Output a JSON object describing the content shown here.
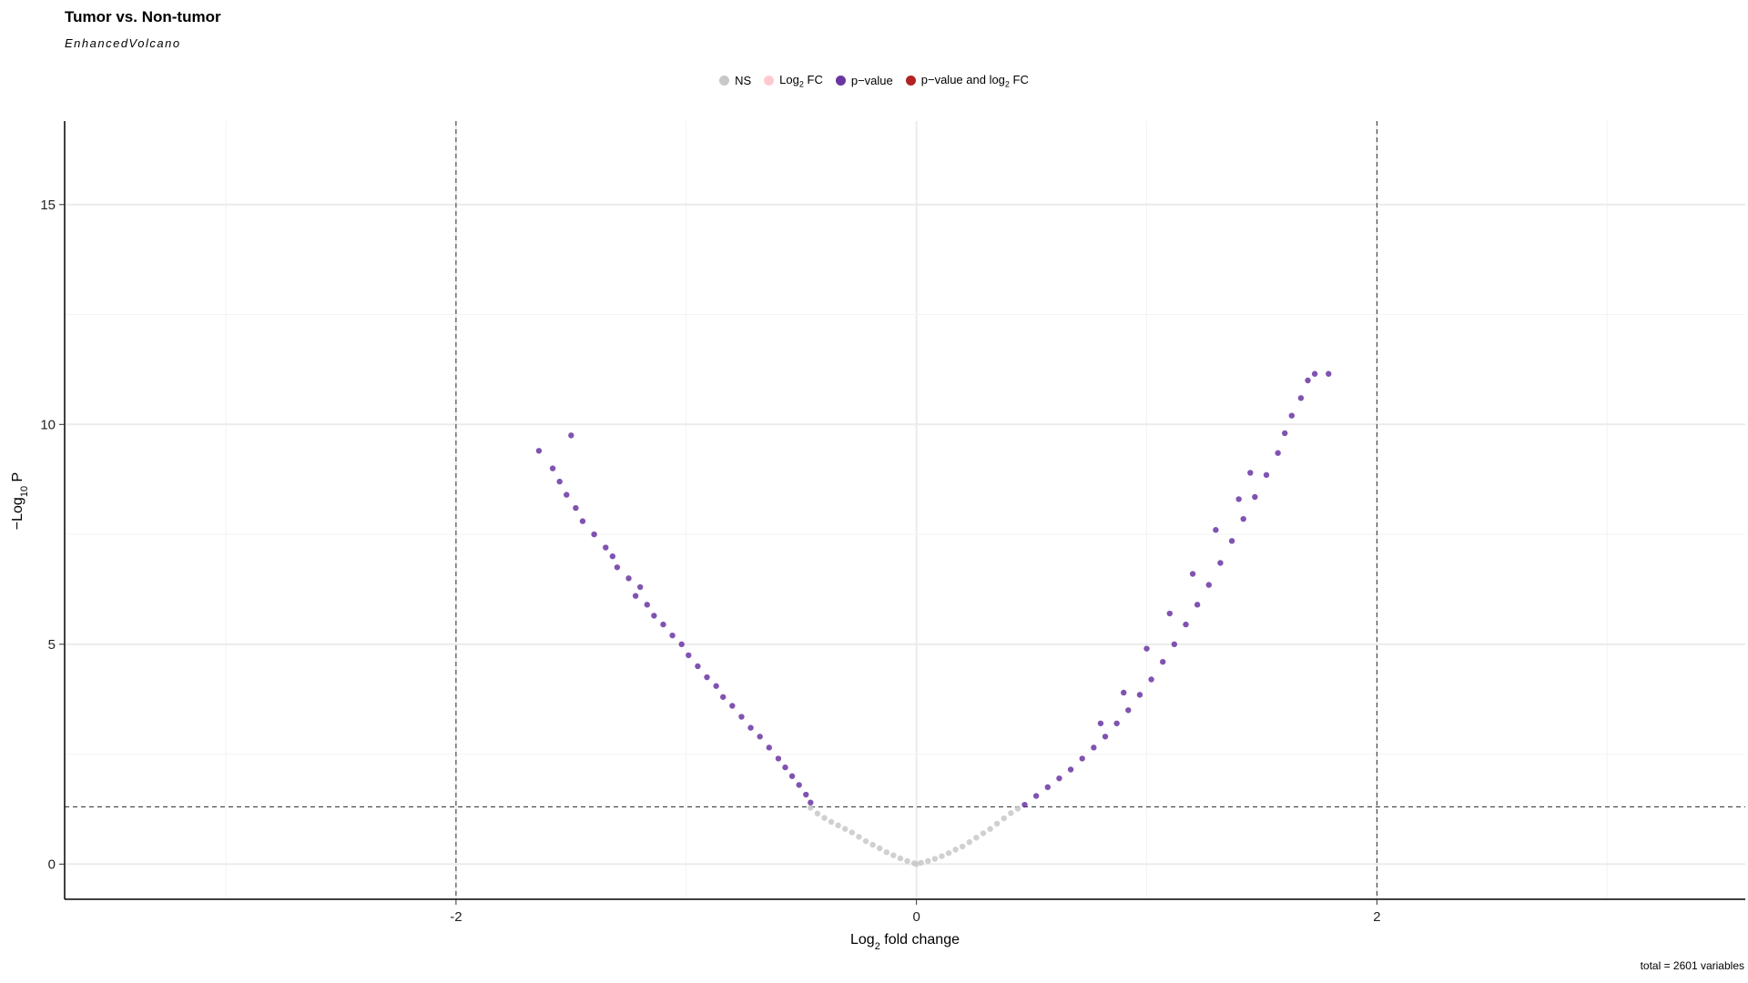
{
  "chart_data": {
    "type": "scatter",
    "title": "Tumor vs. Non-tumor",
    "subtitle": "EnhancedVolcano",
    "xlabel": {
      "base": "Log",
      "sub": "2",
      "rest": " fold change"
    },
    "ylabel": {
      "pre": "−Log",
      "sub": "10",
      "rest": " P"
    },
    "xlim": [
      -3.7,
      3.6
    ],
    "ylim": [
      -0.8,
      16.9
    ],
    "x_ticks": [
      -2,
      0,
      2
    ],
    "y_ticks": [
      0,
      5,
      10,
      15
    ],
    "grid": true,
    "legend_placement": "top",
    "thresholds": {
      "log2fc": [
        -2,
        2
      ],
      "neg_log10_p": 1.3
    },
    "legend": [
      {
        "key": "ns",
        "label": "NS",
        "sub": "",
        "rest": "",
        "color": "#c8c8c8"
      },
      {
        "key": "fc",
        "label": "Log",
        "sub": "2",
        "rest": " FC",
        "color": "#ffc9d0"
      },
      {
        "key": "p",
        "label": "p−value",
        "sub": "",
        "rest": "",
        "color": "#6a35a3"
      },
      {
        "key": "pfc",
        "label": "p−value and log",
        "sub": "2",
        "rest": " FC",
        "color": "#b22222"
      }
    ],
    "series": [
      {
        "name": "NS",
        "color": "#c8c8c8",
        "points": [
          [
            -0.46,
            1.28
          ],
          [
            -0.43,
            1.15
          ],
          [
            -0.4,
            1.05
          ],
          [
            -0.37,
            0.96
          ],
          [
            -0.34,
            0.88
          ],
          [
            -0.31,
            0.8
          ],
          [
            -0.28,
            0.72
          ],
          [
            -0.25,
            0.62
          ],
          [
            -0.22,
            0.52
          ],
          [
            -0.19,
            0.44
          ],
          [
            -0.16,
            0.36
          ],
          [
            -0.13,
            0.27
          ],
          [
            -0.1,
            0.2
          ],
          [
            -0.07,
            0.13
          ],
          [
            -0.04,
            0.07
          ],
          [
            -0.01,
            0.02
          ],
          [
            0.0,
            0.0
          ],
          [
            0.02,
            0.03
          ],
          [
            0.05,
            0.07
          ],
          [
            0.08,
            0.12
          ],
          [
            0.11,
            0.18
          ],
          [
            0.14,
            0.25
          ],
          [
            0.17,
            0.33
          ],
          [
            0.2,
            0.4
          ],
          [
            0.23,
            0.5
          ],
          [
            0.26,
            0.6
          ],
          [
            0.29,
            0.7
          ],
          [
            0.32,
            0.8
          ],
          [
            0.35,
            0.92
          ],
          [
            0.38,
            1.04
          ],
          [
            0.41,
            1.16
          ],
          [
            0.44,
            1.26
          ]
        ]
      },
      {
        "name": "p-value",
        "color": "#6a35a3",
        "points": [
          [
            -1.64,
            9.4
          ],
          [
            -1.5,
            9.75
          ],
          [
            -1.58,
            9.0
          ],
          [
            -1.55,
            8.7
          ],
          [
            -1.52,
            8.4
          ],
          [
            -1.48,
            8.1
          ],
          [
            -1.45,
            7.8
          ],
          [
            -1.4,
            7.5
          ],
          [
            -1.35,
            7.2
          ],
          [
            -1.32,
            7.0
          ],
          [
            -1.3,
            6.75
          ],
          [
            -1.25,
            6.5
          ],
          [
            -1.2,
            6.3
          ],
          [
            -1.22,
            6.1
          ],
          [
            -1.17,
            5.9
          ],
          [
            -1.14,
            5.65
          ],
          [
            -1.1,
            5.45
          ],
          [
            -1.06,
            5.2
          ],
          [
            -1.02,
            5.0
          ],
          [
            -0.99,
            4.75
          ],
          [
            -0.95,
            4.5
          ],
          [
            -0.91,
            4.25
          ],
          [
            -0.87,
            4.05
          ],
          [
            -0.84,
            3.8
          ],
          [
            -0.8,
            3.6
          ],
          [
            -0.76,
            3.35
          ],
          [
            -0.72,
            3.1
          ],
          [
            -0.68,
            2.9
          ],
          [
            -0.64,
            2.65
          ],
          [
            -0.6,
            2.4
          ],
          [
            -0.57,
            2.2
          ],
          [
            -0.54,
            2.0
          ],
          [
            -0.51,
            1.8
          ],
          [
            -0.48,
            1.58
          ],
          [
            -0.46,
            1.4
          ],
          [
            0.47,
            1.35
          ],
          [
            0.52,
            1.55
          ],
          [
            0.57,
            1.75
          ],
          [
            0.62,
            1.95
          ],
          [
            0.67,
            2.15
          ],
          [
            0.72,
            2.4
          ],
          [
            0.77,
            2.65
          ],
          [
            0.82,
            2.9
          ],
          [
            0.87,
            3.2
          ],
          [
            0.92,
            3.5
          ],
          [
            0.97,
            3.85
          ],
          [
            1.02,
            4.2
          ],
          [
            1.07,
            4.6
          ],
          [
            1.12,
            5.0
          ],
          [
            1.17,
            5.45
          ],
          [
            1.22,
            5.9
          ],
          [
            1.27,
            6.35
          ],
          [
            1.32,
            6.85
          ],
          [
            1.37,
            7.35
          ],
          [
            1.42,
            7.85
          ],
          [
            1.47,
            8.35
          ],
          [
            1.52,
            8.85
          ],
          [
            1.57,
            9.35
          ],
          [
            1.6,
            9.8
          ],
          [
            1.63,
            10.2
          ],
          [
            1.67,
            10.6
          ],
          [
            1.7,
            11.0
          ],
          [
            1.73,
            11.15
          ],
          [
            1.79,
            11.15
          ],
          [
            1.45,
            8.9
          ],
          [
            1.4,
            8.3
          ],
          [
            1.3,
            7.6
          ],
          [
            1.2,
            6.6
          ],
          [
            1.1,
            5.7
          ],
          [
            1.0,
            4.9
          ],
          [
            0.9,
            3.9
          ],
          [
            0.8,
            3.2
          ]
        ]
      }
    ],
    "caption": "total = 2601 variables"
  }
}
